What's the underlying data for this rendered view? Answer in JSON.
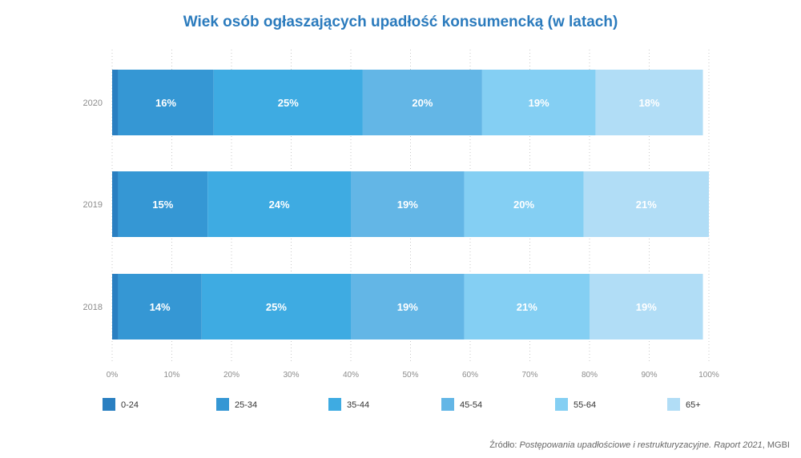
{
  "chart_data": {
    "type": "bar",
    "orientation": "horizontal",
    "stacked": true,
    "title": "Wiek osób ogłaszających upadłość konsumencką (w latach)",
    "categories": [
      "2020",
      "2019",
      "2018"
    ],
    "series": [
      {
        "name": "0-24",
        "color": "#2a7fc1",
        "values": [
          1,
          1,
          1
        ],
        "labels": [
          "",
          "",
          ""
        ]
      },
      {
        "name": "25-34",
        "color": "#3597d4",
        "values": [
          16,
          15,
          14
        ],
        "labels": [
          "16%",
          "15%",
          "14%"
        ]
      },
      {
        "name": "35-44",
        "color": "#3eabe2",
        "values": [
          25,
          24,
          25
        ],
        "labels": [
          "25%",
          "24%",
          "25%"
        ]
      },
      {
        "name": "45-54",
        "color": "#63b6e6",
        "values": [
          20,
          19,
          19
        ],
        "labels": [
          "20%",
          "19%",
          "19%"
        ]
      },
      {
        "name": "55-64",
        "color": "#84cff3",
        "values": [
          19,
          20,
          21
        ],
        "labels": [
          "19%",
          "20%",
          "21%"
        ]
      },
      {
        "name": "65+",
        "color": "#b1ddf6",
        "values": [
          18,
          21,
          19
        ],
        "labels": [
          "18%",
          "21%",
          "19%"
        ]
      }
    ],
    "xlim": [
      0,
      100
    ],
    "xticks": [
      "0%",
      "10%",
      "20%",
      "30%",
      "40%",
      "50%",
      "60%",
      "70%",
      "80%",
      "90%",
      "100%"
    ],
    "grid": "vertical dotted",
    "legend": "bottom"
  },
  "source": {
    "prefix": "Źródło: ",
    "text": "Postępowania upadłościowe i restrukturyzacyjne. Raport 2021",
    "suffix": ", MGBI"
  }
}
